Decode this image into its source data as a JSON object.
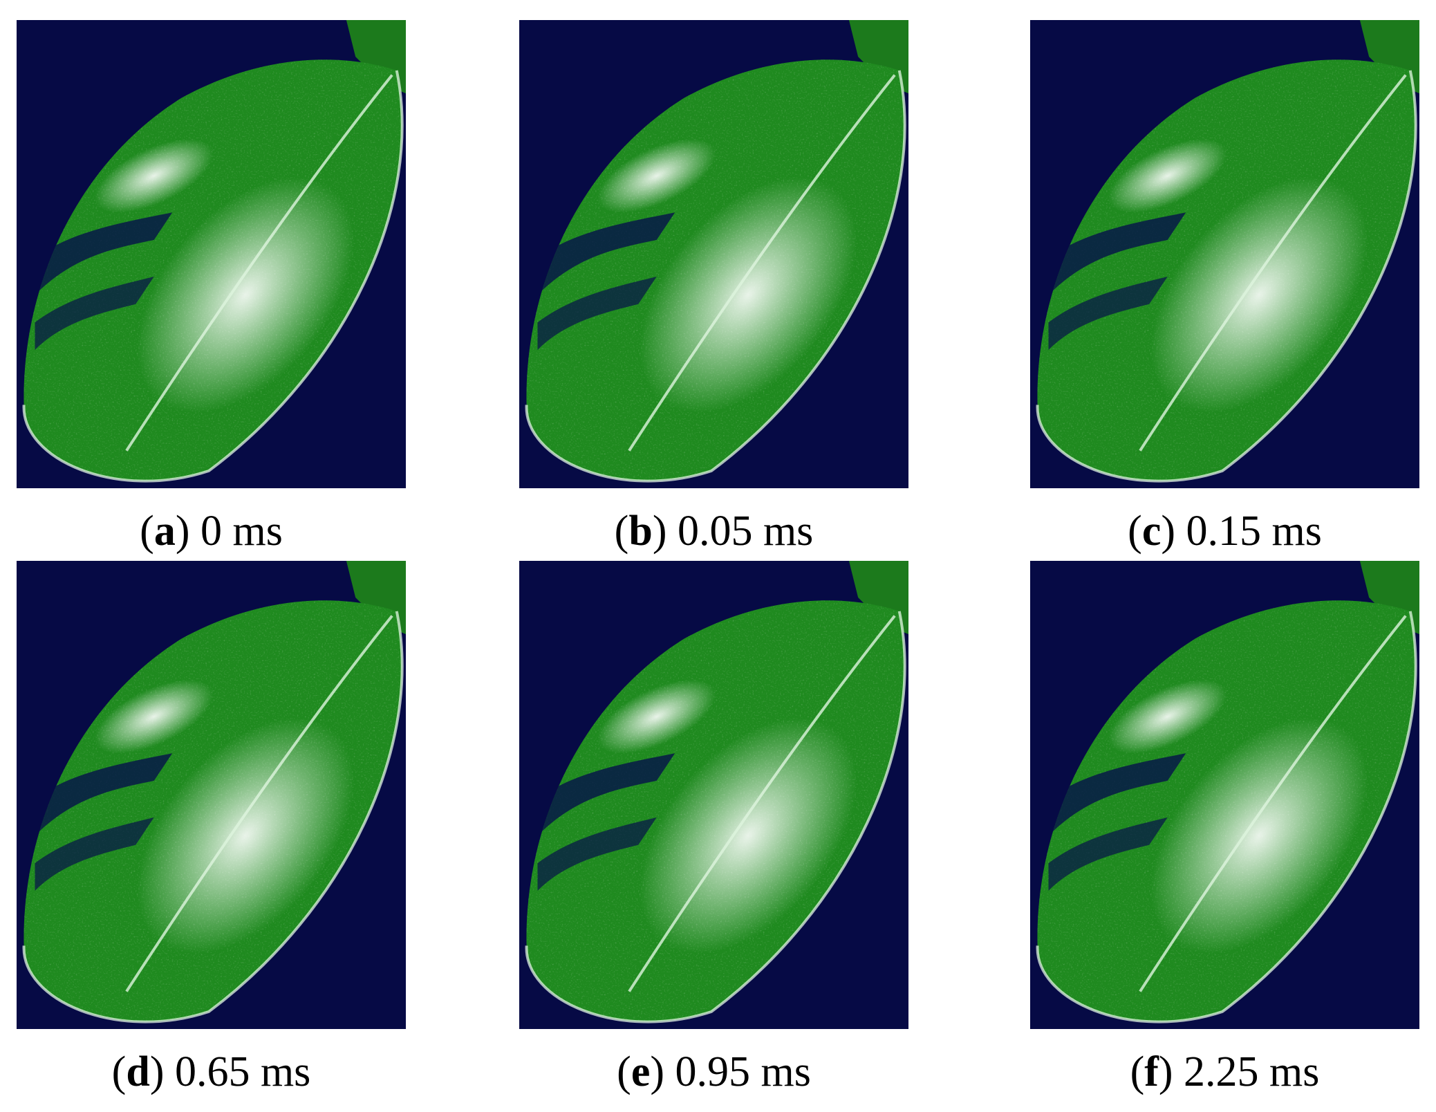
{
  "figure": {
    "panels": [
      {
        "caption": [
          "(",
          "a",
          ") 0 ms"
        ]
      },
      {
        "caption": [
          "(",
          "b",
          ") 0.05 ms"
        ]
      },
      {
        "caption": [
          "(",
          "c",
          ") 0.15 ms"
        ]
      },
      {
        "caption": [
          "(",
          "d",
          ") 0.65 ms"
        ]
      },
      {
        "caption": [
          "(",
          "e",
          ") 0.95 ms"
        ]
      },
      {
        "caption": [
          "(",
          "f",
          ") 2.25 ms"
        ]
      }
    ]
  }
}
